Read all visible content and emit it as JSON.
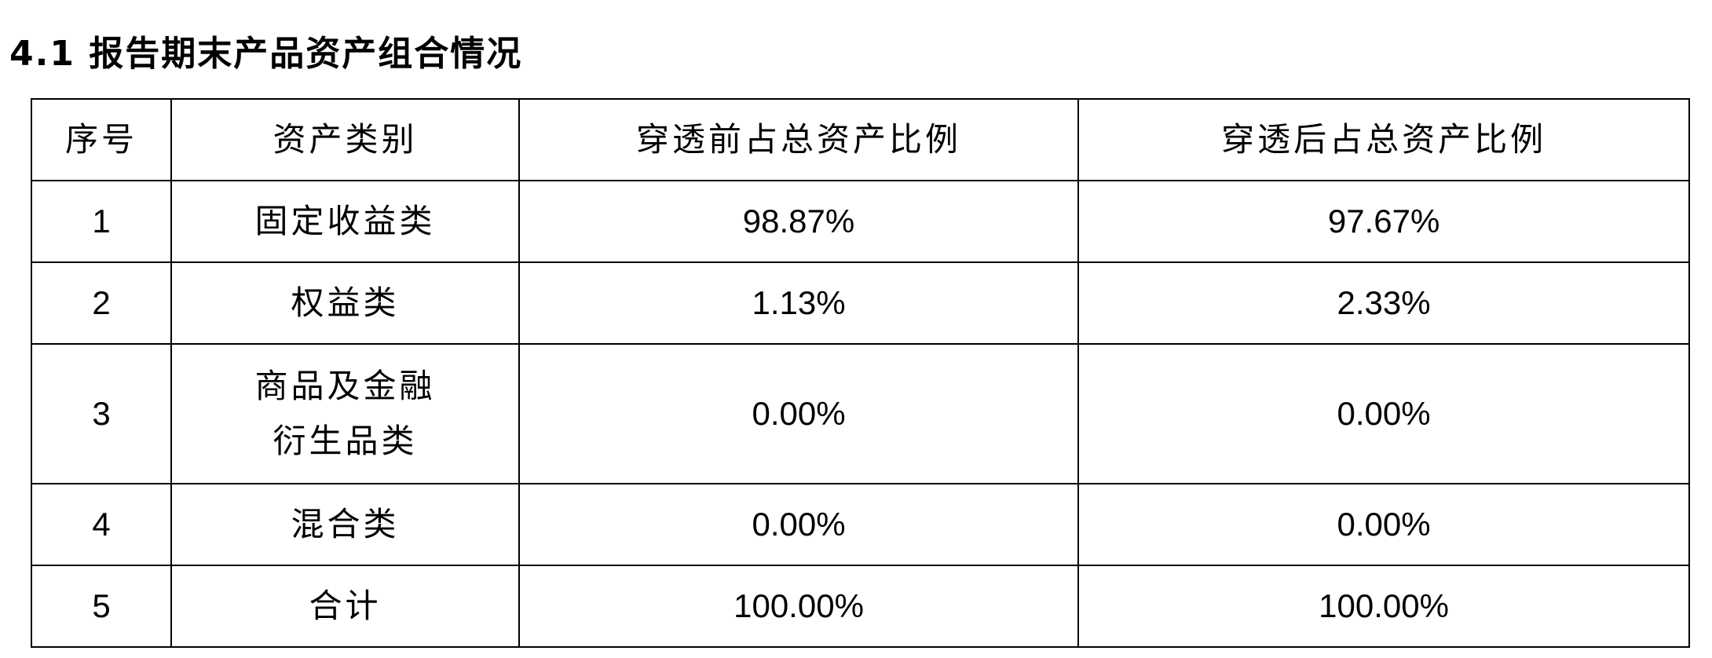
{
  "title": "4.1 报告期末产品资产组合情况",
  "table": {
    "headers": [
      "序号",
      "资产类别",
      "穿透前占总资产比例",
      "穿透后占总资产比例"
    ],
    "rows": [
      {
        "no": "1",
        "category": "固定收益类",
        "before": "98.87%",
        "after": "97.67%"
      },
      {
        "no": "2",
        "category": "权益类",
        "before": "1.13%",
        "after": "2.33%"
      },
      {
        "no": "3",
        "category": "商品及金融衍生品类",
        "before": "0.00%",
        "after": "0.00%"
      },
      {
        "no": "4",
        "category": "混合类",
        "before": "0.00%",
        "after": "0.00%"
      },
      {
        "no": "5",
        "category": "合计",
        "before": "100.00%",
        "after": "100.00%"
      }
    ]
  }
}
